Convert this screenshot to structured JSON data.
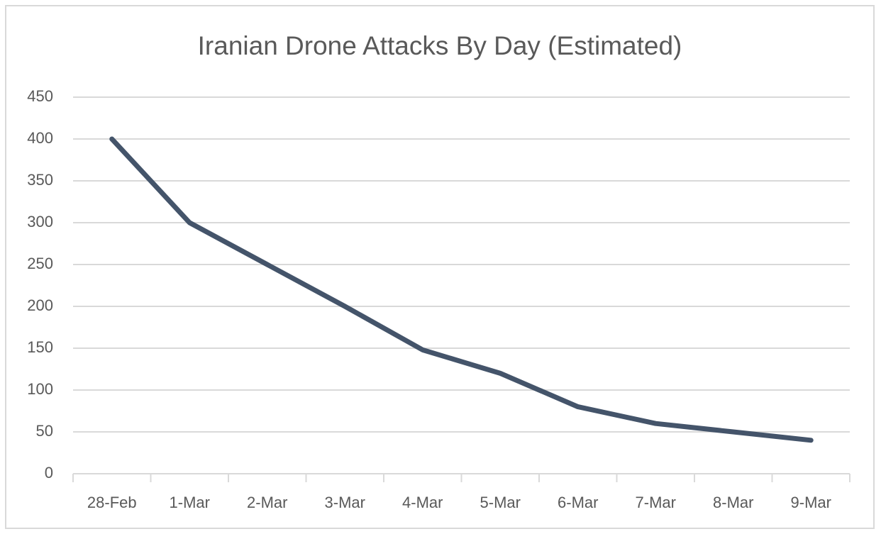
{
  "chart_data": {
    "type": "line",
    "title": "Iranian Drone Attacks By Day (Estimated)",
    "categories": [
      "28-Feb",
      "1-Mar",
      "2-Mar",
      "3-Mar",
      "4-Mar",
      "5-Mar",
      "6-Mar",
      "7-Mar",
      "8-Mar",
      "9-Mar"
    ],
    "values": [
      400,
      300,
      250,
      200,
      148,
      120,
      80,
      60,
      50,
      40
    ],
    "color": "#44546a",
    "ylim": [
      0,
      450
    ],
    "yticks": [
      0,
      50,
      100,
      150,
      200,
      250,
      300,
      350,
      400,
      450
    ],
    "grid": true
  }
}
